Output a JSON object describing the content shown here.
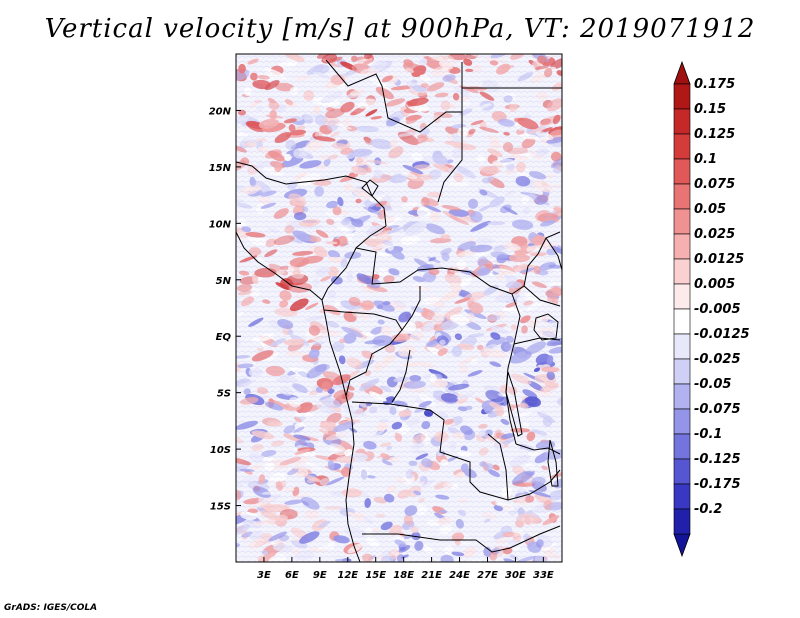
{
  "title": "Vertical velocity [m/s] at 900hPa, VT: 2019071912",
  "credit": "GrADS: IGES/COLA",
  "map": {
    "lon_range": [
      0,
      35
    ],
    "lat_range": [
      -20,
      25
    ],
    "lon_ticks": [
      {
        "value": 3,
        "label": "3E"
      },
      {
        "value": 6,
        "label": "6E"
      },
      {
        "value": 9,
        "label": "9E"
      },
      {
        "value": 12,
        "label": "12E"
      },
      {
        "value": 15,
        "label": "15E"
      },
      {
        "value": 18,
        "label": "18E"
      },
      {
        "value": 21,
        "label": "21E"
      },
      {
        "value": 24,
        "label": "24E"
      },
      {
        "value": 27,
        "label": "27E"
      },
      {
        "value": 30,
        "label": "30E"
      },
      {
        "value": 33,
        "label": "33E"
      }
    ],
    "lat_ticks": [
      {
        "value": 20,
        "label": "20N"
      },
      {
        "value": 15,
        "label": "15N"
      },
      {
        "value": 10,
        "label": "10N"
      },
      {
        "value": 5,
        "label": "5N"
      },
      {
        "value": 0,
        "label": "EQ"
      },
      {
        "value": -5,
        "label": "5S"
      },
      {
        "value": -10,
        "label": "10S"
      },
      {
        "value": -15,
        "label": "15S"
      }
    ]
  },
  "colorbar": {
    "levels": [
      {
        "label": "0.175",
        "color": "#b01818"
      },
      {
        "label": "0.15",
        "color": "#c42828"
      },
      {
        "label": "0.125",
        "color": "#d43c3c"
      },
      {
        "label": "0.1",
        "color": "#e05858"
      },
      {
        "label": "0.075",
        "color": "#e87474"
      },
      {
        "label": "0.05",
        "color": "#f09292"
      },
      {
        "label": "0.025",
        "color": "#f6b0b0"
      },
      {
        "label": "0.0125",
        "color": "#fad0d0"
      },
      {
        "label": "0.005",
        "color": "#fdeaea"
      },
      {
        "label": "-0.005",
        "color": "#ffffff"
      },
      {
        "label": "-0.0125",
        "color": "#e8e8fb"
      },
      {
        "label": "-0.025",
        "color": "#d0d0f6"
      },
      {
        "label": "-0.05",
        "color": "#b2b2f0"
      },
      {
        "label": "-0.075",
        "color": "#9494e8"
      },
      {
        "label": "-0.1",
        "color": "#7474de"
      },
      {
        "label": "-0.125",
        "color": "#5656d2"
      },
      {
        "label": "-0.175",
        "color": "#3838c2"
      },
      {
        "label": "-0.2",
        "color": "#2020aa"
      }
    ],
    "top_color": "#a01010",
    "bottom_color": "#14149a"
  }
}
